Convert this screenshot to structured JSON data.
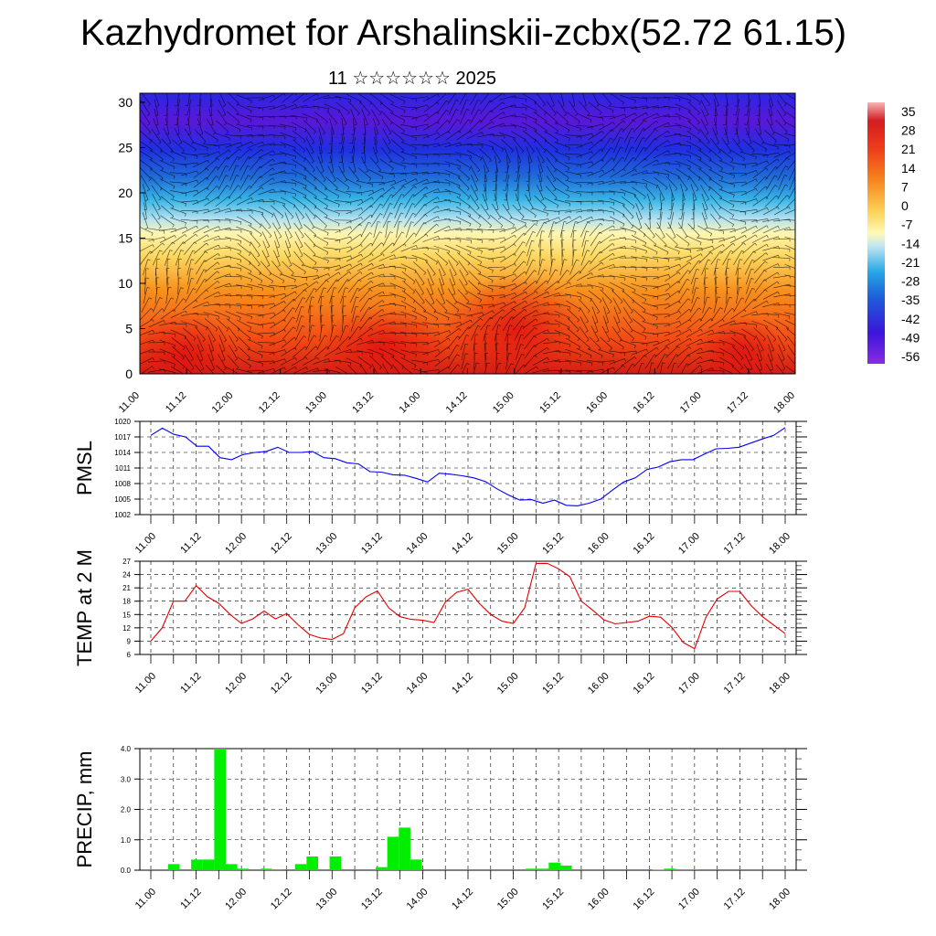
{
  "page": {
    "title": "Kazhydromet for Arshalinskii-zcbx(52.72 61.15)",
    "subtitle": "11 ☆☆☆☆☆☆ 2025"
  },
  "chart_data": [
    {
      "type": "heatmap",
      "title": "",
      "xlabel": "",
      "ylabel": "",
      "x_ticks": [
        "11.00",
        "11.12",
        "12.00",
        "12.12",
        "13.00",
        "13.12",
        "14.00",
        "14.12",
        "15.00",
        "15.12",
        "16.00",
        "16.12",
        "17.00",
        "17.12",
        "18.00"
      ],
      "y_ticks": [
        0,
        5,
        10,
        15,
        20,
        25,
        30
      ],
      "ylim": [
        0,
        31
      ],
      "colorbar": {
        "labels": [
          "35",
          "28",
          "21",
          "14",
          "7",
          "0",
          "-7",
          "-14",
          "-21",
          "-28",
          "-35",
          "-42",
          "-49",
          "-56"
        ],
        "colors": [
          "#f6b4b4",
          "#e6202a",
          "#f0341c",
          "#f5661a",
          "#f99c26",
          "#fde27e",
          "#fff9b5",
          "#bfe6f2",
          "#4fc0ea",
          "#1f8fdb",
          "#1e58d8",
          "#1f1ee6",
          "#4b14d6",
          "#8a2be2"
        ]
      },
      "wind_barbs": true
    },
    {
      "type": "line",
      "ylabel": "PMSL",
      "color": "#0000ff",
      "x_ticks": [
        "11.00",
        "11.12",
        "12.00",
        "12.12",
        "13.00",
        "13.12",
        "14.00",
        "14.12",
        "15.00",
        "15.12",
        "16.00",
        "16.12",
        "17.00",
        "17.12",
        "18.00"
      ],
      "y_ticks": [
        "1002",
        "1005",
        "1008",
        "1011",
        "1014",
        "1017",
        "1020"
      ],
      "ylim": [
        1002,
        1020
      ],
      "values": [
        1017.3,
        1018.7,
        1017.5,
        1017,
        1015.2,
        1015.2,
        1013,
        1012.6,
        1013.6,
        1014,
        1014.2,
        1015,
        1014,
        1014,
        1014.2,
        1013,
        1012.8,
        1012,
        1011.8,
        1010.3,
        1010.2,
        1009.7,
        1009.6,
        1009,
        1008.3,
        1010,
        1009.8,
        1009.5,
        1009.1,
        1008.4,
        1007,
        1005.8,
        1004.8,
        1004.9,
        1004.2,
        1004.8,
        1003.8,
        1003.7,
        1004.2,
        1005,
        1006.7,
        1008.3,
        1009.1,
        1010.7,
        1011.2,
        1012.2,
        1012.6,
        1012.6,
        1013.7,
        1014.7,
        1014.8,
        1015,
        1015.8,
        1016.6,
        1017.3,
        1018.8
      ]
    },
    {
      "type": "line",
      "ylabel": "TEMP at 2 M",
      "color": "#e00000",
      "x_ticks": [
        "11.00",
        "11.12",
        "12.00",
        "12.12",
        "13.00",
        "13.12",
        "14.00",
        "14.12",
        "15.00",
        "15.12",
        "16.00",
        "16.12",
        "17.00",
        "17.12",
        "18.00"
      ],
      "y_ticks": [
        "6",
        "9",
        "12",
        "15",
        "18",
        "21",
        "24",
        "27"
      ],
      "ylim": [
        6,
        27
      ],
      "values": [
        9,
        12,
        18,
        18,
        21.5,
        19,
        17.5,
        15,
        13,
        14,
        15.8,
        14,
        15.2,
        12.7,
        10.5,
        9.7,
        9.4,
        10.7,
        16.5,
        19,
        20.3,
        16.5,
        14.5,
        13.9,
        13.7,
        13.2,
        17.8,
        20,
        20.7,
        17.5,
        15,
        13.5,
        13,
        16.5,
        26.5,
        26.5,
        25.3,
        23.5,
        18,
        16,
        13.8,
        12.9,
        13.2,
        13.5,
        14.6,
        14.4,
        12.1,
        8.7,
        7.3,
        14.4,
        18.5,
        20.2,
        20.2,
        17,
        14.5,
        12.6,
        10.7
      ]
    },
    {
      "type": "bar",
      "ylabel": "PRECIP, mm",
      "color": "#00ee00",
      "x_ticks": [
        "11.00",
        "11.12",
        "12.00",
        "12.12",
        "13.00",
        "13.12",
        "14.00",
        "14.12",
        "15.00",
        "15.12",
        "16.00",
        "16.12",
        "17.00",
        "17.12",
        "18.00"
      ],
      "y_ticks": [
        "0.0",
        "1.0",
        "2.0",
        "3.0",
        "4.0"
      ],
      "ylim": [
        0,
        4.0
      ],
      "values": [
        0,
        0,
        0.2,
        0,
        0.35,
        0.35,
        4.0,
        0.2,
        0.05,
        0,
        0.05,
        0.03,
        0,
        0.2,
        0.45,
        0,
        0.45,
        0,
        0,
        0,
        0.1,
        1.1,
        1.4,
        0.35,
        0,
        0,
        0,
        0,
        0,
        0,
        0,
        0,
        0,
        0.05,
        0.05,
        0.25,
        0.15,
        0,
        0,
        0,
        0,
        0,
        0,
        0,
        0.02,
        0.05,
        0.03,
        0.03,
        0,
        0,
        0,
        0,
        0,
        0,
        0,
        0
      ]
    }
  ]
}
